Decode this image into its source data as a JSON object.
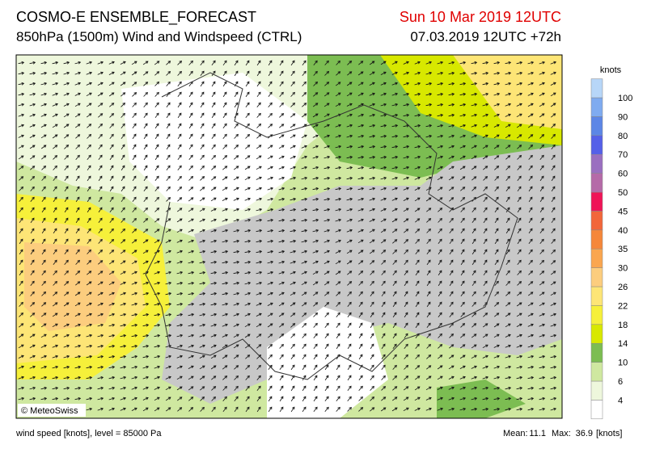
{
  "header": {
    "title": "COSMO-E ENSEMBLE_FORECAST",
    "subtitle": "850hPa (1500m) Wind and Windspeed (CTRL)",
    "valid": "Sun 10 Mar 2019 12UTC",
    "run": "07.03.2019 12UTC +72h"
  },
  "legend": {
    "unit": "knots",
    "levels": [
      4,
      6,
      10,
      14,
      18,
      22,
      26,
      30,
      35,
      40,
      45,
      50,
      60,
      70,
      80,
      90,
      100
    ],
    "colors": [
      "#ffffff",
      "#eef7dc",
      "#cfe8a0",
      "#7cbd52",
      "#d8e800",
      "#f6f03a",
      "#fde576",
      "#fccd7e",
      "#faa64f",
      "#f5873a",
      "#f2663a",
      "#ef1457",
      "#b56aa8",
      "#9a6fc0",
      "#5560e8",
      "#5c86e6",
      "#7fabf0",
      "#b7d6f8"
    ]
  },
  "map": {
    "copyright": "© MeteoSwiss"
  },
  "footer": {
    "description": "wind speed [knots], level = 85000 Pa",
    "mean_label": "Mean:",
    "mean": 11.1,
    "max_label": "Max:",
    "max": 36.9,
    "unit": "[knots]"
  }
}
